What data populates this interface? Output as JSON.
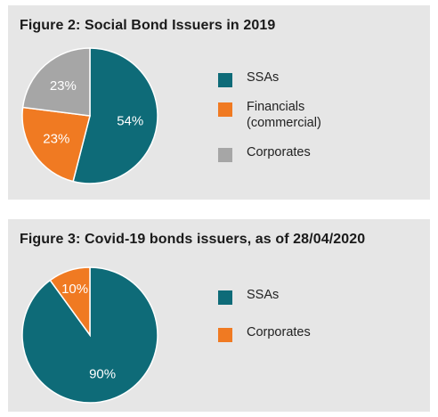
{
  "chart_data": [
    {
      "type": "pie",
      "title": "Figure 2: Social Bond Issuers in 2019",
      "slices": [
        {
          "label": "SSAs",
          "value": 54,
          "display": "54%",
          "color": "#0e6b78"
        },
        {
          "label": "Financials (commercial)",
          "value": 23,
          "display": "23%",
          "color": "#f07a22"
        },
        {
          "label": "Corporates",
          "value": 23,
          "display": "23%",
          "color": "#a6a6a6"
        }
      ],
      "legend_labels": [
        "SSAs",
        "Financials\n(commercial)",
        "Corporates"
      ],
      "legend_position": "right"
    },
    {
      "type": "pie",
      "title": "Figure 3: Covid-19 bonds issuers, as of 28/04/2020",
      "slices": [
        {
          "label": "SSAs",
          "value": 90,
          "display": "90%",
          "color": "#0e6b78"
        },
        {
          "label": "Corporates",
          "value": 10,
          "display": "10%",
          "color": "#f07a22"
        }
      ],
      "legend_labels": [
        "SSAs",
        "Corporates"
      ],
      "legend_position": "right"
    }
  ]
}
